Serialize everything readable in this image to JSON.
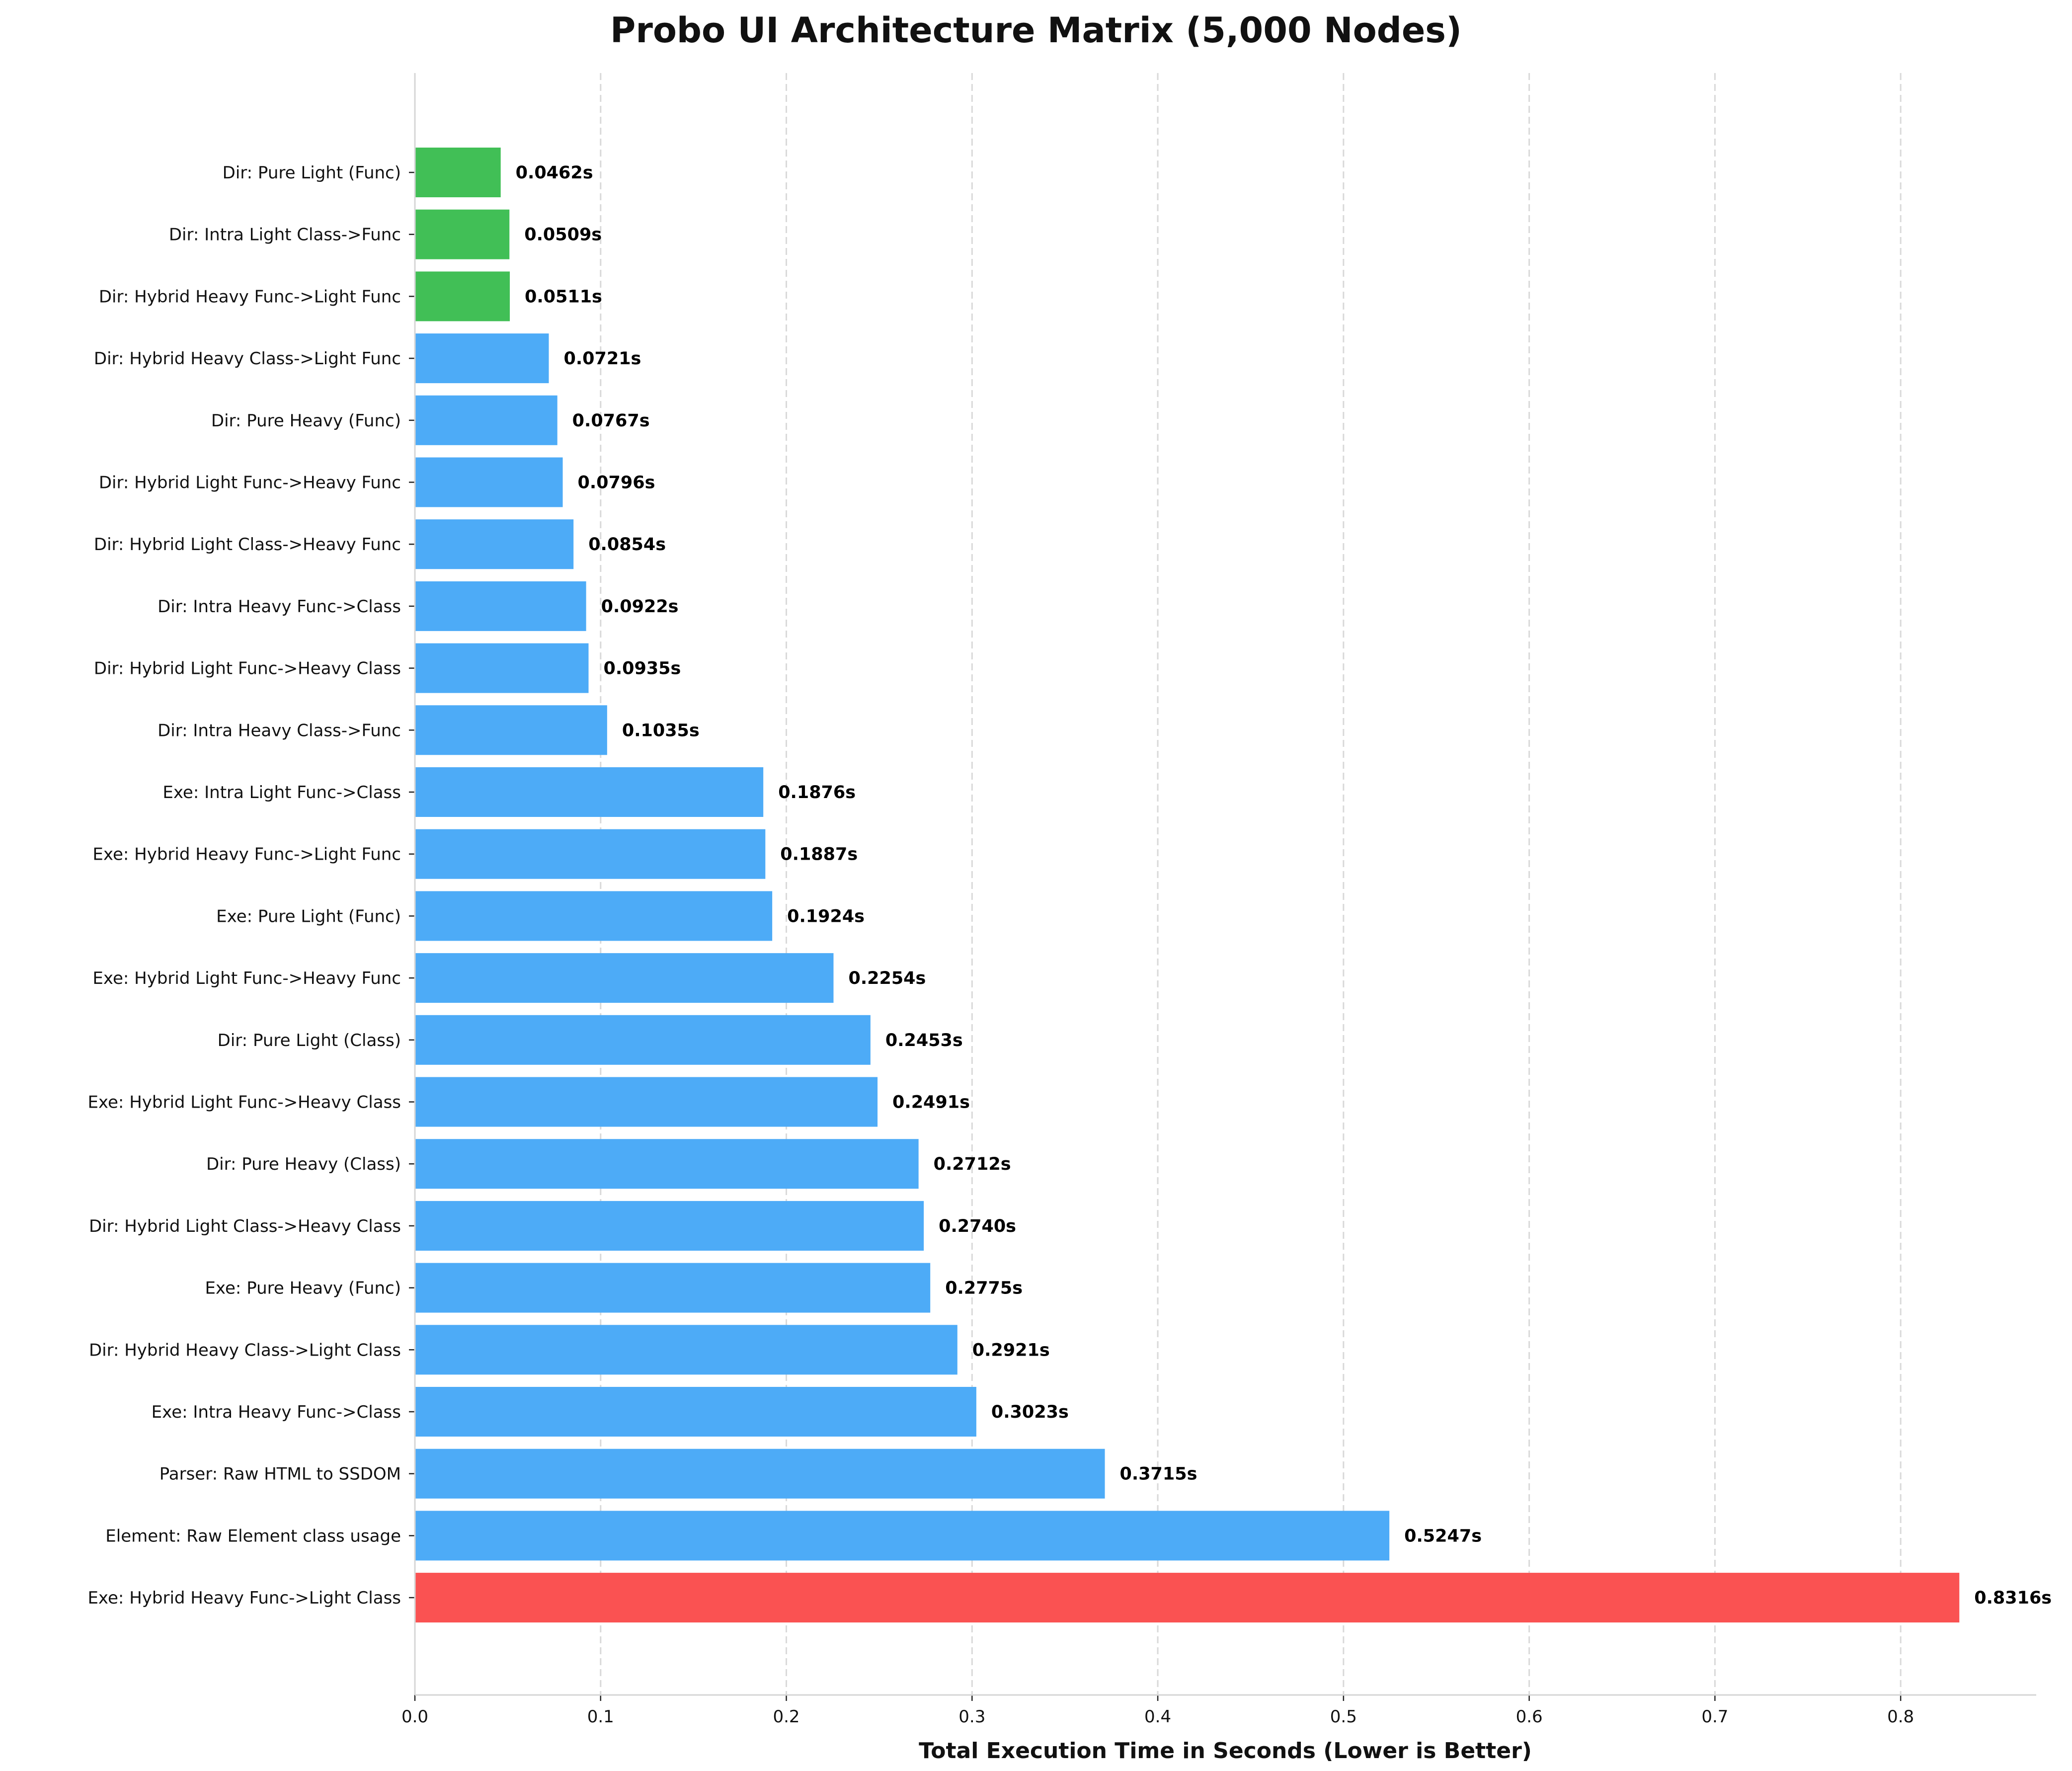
{
  "chart_data": {
    "type": "bar",
    "orientation": "horizontal",
    "title": "Probo UI Architecture Matrix (5,000 Nodes)",
    "xlabel": "Total Execution Time in Seconds (Lower is Better)",
    "ylabel": "",
    "xlim": [
      0,
      0.873
    ],
    "xticks": [
      "0.0",
      "0.1",
      "0.2",
      "0.3",
      "0.4",
      "0.5",
      "0.6",
      "0.7",
      "0.8"
    ],
    "grid": "x dashed",
    "value_suffix": "s",
    "colors": {
      "fast": "#41bf56",
      "normal": "#4dabf7",
      "slowest": "#fa5252"
    },
    "categories": [
      "Dir: Pure Light (Func)",
      "Dir: Intra Light Class->Func",
      "Dir: Hybrid Heavy Func->Light Func",
      "Dir: Hybrid Heavy Class->Light Func",
      "Dir: Pure Heavy (Func)",
      "Dir: Hybrid Light Func->Heavy Func",
      "Dir: Hybrid Light Class->Heavy Func",
      "Dir: Intra Heavy Func->Class",
      "Dir: Hybrid Light Func->Heavy Class",
      "Dir: Intra Heavy Class->Func",
      "Exe: Intra Light Func->Class",
      "Exe: Hybrid Heavy Func->Light Func",
      "Exe: Pure Light (Func)",
      "Exe: Hybrid Light Func->Heavy Func",
      "Dir: Pure Light (Class)",
      "Exe: Hybrid Light Func->Heavy Class",
      "Dir: Pure Heavy (Class)",
      "Dir: Hybrid Light Class->Heavy Class",
      "Exe: Pure Heavy (Func)",
      "Dir: Hybrid Heavy Class->Light Class",
      "Exe: Intra Heavy Func->Class",
      "Parser: Raw HTML to SSDOM",
      "Element: Raw Element class usage",
      "Exe: Hybrid Heavy Func->Light Class"
    ],
    "values": [
      0.0462,
      0.0509,
      0.0511,
      0.0721,
      0.0767,
      0.0796,
      0.0854,
      0.0922,
      0.0935,
      0.1035,
      0.1876,
      0.1887,
      0.1924,
      0.2254,
      0.2453,
      0.2491,
      0.2712,
      0.274,
      0.2775,
      0.2921,
      0.3023,
      0.3715,
      0.5247,
      0.8316
    ],
    "value_labels": [
      "0.0462s",
      "0.0509s",
      "0.0511s",
      "0.0721s",
      "0.0767s",
      "0.0796s",
      "0.0854s",
      "0.0922s",
      "0.0935s",
      "0.1035s",
      "0.1876s",
      "0.1887s",
      "0.1924s",
      "0.2254s",
      "0.2453s",
      "0.2491s",
      "0.2712s",
      "0.2740s",
      "0.2775s",
      "0.2921s",
      "0.3023s",
      "0.3715s",
      "0.5247s",
      "0.8316s"
    ],
    "bar_color_groups": [
      "fast",
      "fast",
      "fast",
      "normal",
      "normal",
      "normal",
      "normal",
      "normal",
      "normal",
      "normal",
      "normal",
      "normal",
      "normal",
      "normal",
      "normal",
      "normal",
      "normal",
      "normal",
      "normal",
      "normal",
      "normal",
      "normal",
      "normal",
      "slowest"
    ]
  }
}
